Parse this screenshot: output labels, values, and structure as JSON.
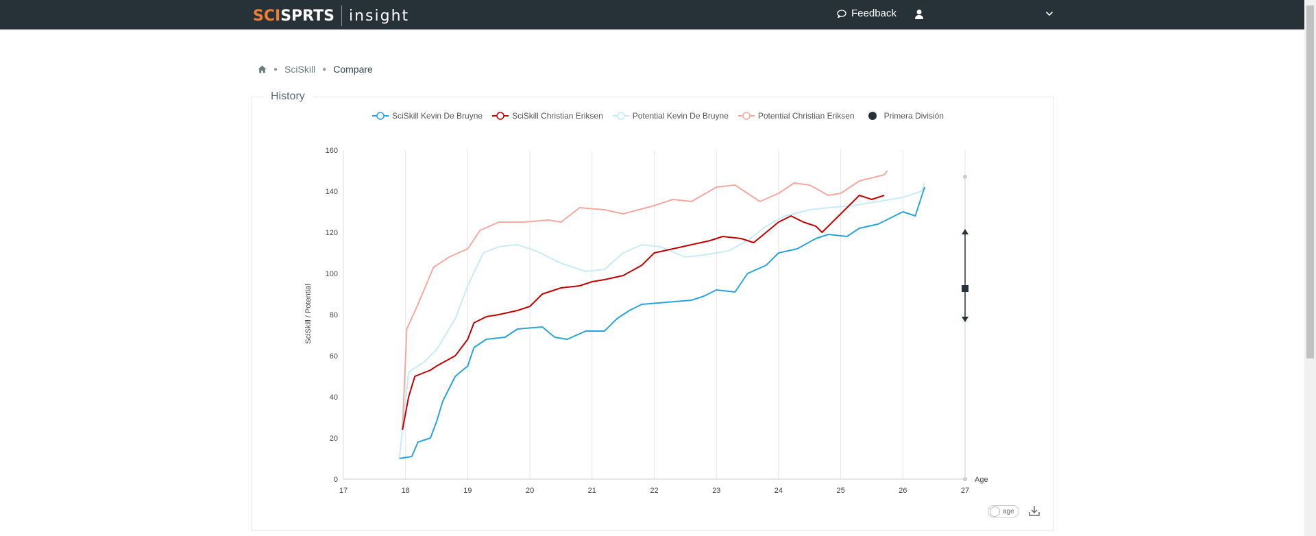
{
  "header": {
    "brand_part1": "SCI",
    "brand_part2": "SP",
    "brand_part3": "RTS",
    "product": "insight",
    "feedback_label": "Feedback",
    "user_name": ""
  },
  "breadcrumb": {
    "home_icon": "home-icon",
    "items": [
      "SciSkill",
      "Compare"
    ]
  },
  "panel": {
    "title": "History"
  },
  "controls": {
    "toggle_label": "age",
    "download_icon": "download-icon"
  },
  "colors": {
    "deBruyne": "#29a3dc",
    "eriksen": "#c00000",
    "potDeBruyne": "#c9ebf7",
    "potEriksen": "#f4a9a0",
    "division": "#263238"
  },
  "chart_data": {
    "type": "line",
    "xlabel": "Age",
    "ylabel": "SciSkill / Potential",
    "xlim": [
      17,
      27
    ],
    "ylim": [
      0,
      160
    ],
    "x_ticks": [
      17,
      18,
      19,
      20,
      21,
      22,
      23,
      24,
      25,
      26,
      27
    ],
    "y_ticks": [
      0,
      20,
      40,
      60,
      80,
      100,
      120,
      140,
      160
    ],
    "grid": "vertical",
    "legend_position": "top-center",
    "series": [
      {
        "name": "SciSkill Kevin De Bruyne",
        "points": [
          [
            17.9,
            10
          ],
          [
            18.1,
            11
          ],
          [
            18.2,
            18
          ],
          [
            18.4,
            20
          ],
          [
            18.5,
            28
          ],
          [
            18.6,
            38
          ],
          [
            18.8,
            50
          ],
          [
            19.0,
            55
          ],
          [
            19.1,
            64
          ],
          [
            19.3,
            68
          ],
          [
            19.6,
            69
          ],
          [
            19.8,
            73
          ],
          [
            20.2,
            74
          ],
          [
            20.4,
            69
          ],
          [
            20.6,
            68
          ],
          [
            20.9,
            72
          ],
          [
            21.2,
            72
          ],
          [
            21.4,
            78
          ],
          [
            21.6,
            82
          ],
          [
            21.8,
            85
          ],
          [
            22.2,
            86
          ],
          [
            22.6,
            87
          ],
          [
            22.8,
            89
          ],
          [
            23.0,
            92
          ],
          [
            23.3,
            91
          ],
          [
            23.5,
            100
          ],
          [
            23.8,
            104
          ],
          [
            24.0,
            110
          ],
          [
            24.3,
            112
          ],
          [
            24.6,
            117
          ],
          [
            24.8,
            119
          ],
          [
            25.1,
            118
          ],
          [
            25.3,
            122
          ],
          [
            25.6,
            124
          ],
          [
            25.8,
            127
          ],
          [
            26.0,
            130
          ],
          [
            26.2,
            128
          ],
          [
            26.35,
            142
          ]
        ]
      },
      {
        "name": "SciSkill Christian Eriksen",
        "points": [
          [
            17.95,
            24
          ],
          [
            18.05,
            40
          ],
          [
            18.15,
            50
          ],
          [
            18.4,
            53
          ],
          [
            18.5,
            55
          ],
          [
            18.8,
            60
          ],
          [
            19.0,
            68
          ],
          [
            19.1,
            76
          ],
          [
            19.3,
            79
          ],
          [
            19.5,
            80
          ],
          [
            19.8,
            82
          ],
          [
            20.0,
            84
          ],
          [
            20.2,
            90
          ],
          [
            20.5,
            93
          ],
          [
            20.8,
            94
          ],
          [
            21.0,
            96
          ],
          [
            21.2,
            97
          ],
          [
            21.5,
            99
          ],
          [
            21.8,
            104
          ],
          [
            22.0,
            110
          ],
          [
            22.3,
            112
          ],
          [
            22.6,
            114
          ],
          [
            22.9,
            116
          ],
          [
            23.1,
            118
          ],
          [
            23.4,
            117
          ],
          [
            23.6,
            115
          ],
          [
            23.8,
            120
          ],
          [
            24.0,
            125
          ],
          [
            24.2,
            128
          ],
          [
            24.4,
            125
          ],
          [
            24.6,
            123
          ],
          [
            24.7,
            120
          ],
          [
            24.9,
            126
          ],
          [
            25.1,
            132
          ],
          [
            25.3,
            138
          ],
          [
            25.5,
            136
          ],
          [
            25.7,
            138
          ]
        ]
      },
      {
        "name": "Potential Kevin De Bruyne",
        "points": [
          [
            17.9,
            10
          ],
          [
            18.05,
            52
          ],
          [
            18.3,
            57
          ],
          [
            18.5,
            63
          ],
          [
            18.8,
            78
          ],
          [
            19.0,
            94
          ],
          [
            19.25,
            110
          ],
          [
            19.5,
            113
          ],
          [
            19.8,
            114
          ],
          [
            20.1,
            111
          ],
          [
            20.5,
            105
          ],
          [
            20.9,
            101
          ],
          [
            21.2,
            102
          ],
          [
            21.5,
            110
          ],
          [
            21.8,
            114
          ],
          [
            22.1,
            113
          ],
          [
            22.5,
            108
          ],
          [
            22.8,
            109
          ],
          [
            23.2,
            111
          ],
          [
            23.5,
            116
          ],
          [
            23.8,
            123
          ],
          [
            24.1,
            128
          ],
          [
            24.5,
            131
          ],
          [
            24.8,
            132
          ],
          [
            25.2,
            133
          ],
          [
            25.6,
            135
          ],
          [
            26.0,
            137
          ],
          [
            26.3,
            140
          ],
          [
            26.35,
            144
          ]
        ]
      },
      {
        "name": "Potential Christian Eriksen",
        "points": [
          [
            17.95,
            24
          ],
          [
            18.02,
            73
          ],
          [
            18.2,
            85
          ],
          [
            18.45,
            103
          ],
          [
            18.7,
            108
          ],
          [
            19.0,
            112
          ],
          [
            19.2,
            121
          ],
          [
            19.5,
            125
          ],
          [
            19.9,
            125
          ],
          [
            20.3,
            126
          ],
          [
            20.5,
            125
          ],
          [
            20.8,
            132
          ],
          [
            21.2,
            131
          ],
          [
            21.5,
            129
          ],
          [
            22.0,
            133
          ],
          [
            22.3,
            136
          ],
          [
            22.6,
            135
          ],
          [
            23.0,
            142
          ],
          [
            23.3,
            143
          ],
          [
            23.7,
            135
          ],
          [
            24.0,
            139
          ],
          [
            24.25,
            144
          ],
          [
            24.5,
            143
          ],
          [
            24.8,
            138
          ],
          [
            25.0,
            139
          ],
          [
            25.3,
            145
          ],
          [
            25.7,
            148
          ],
          [
            25.75,
            150
          ]
        ]
      },
      {
        "name": "Primera División",
        "points": []
      }
    ]
  }
}
